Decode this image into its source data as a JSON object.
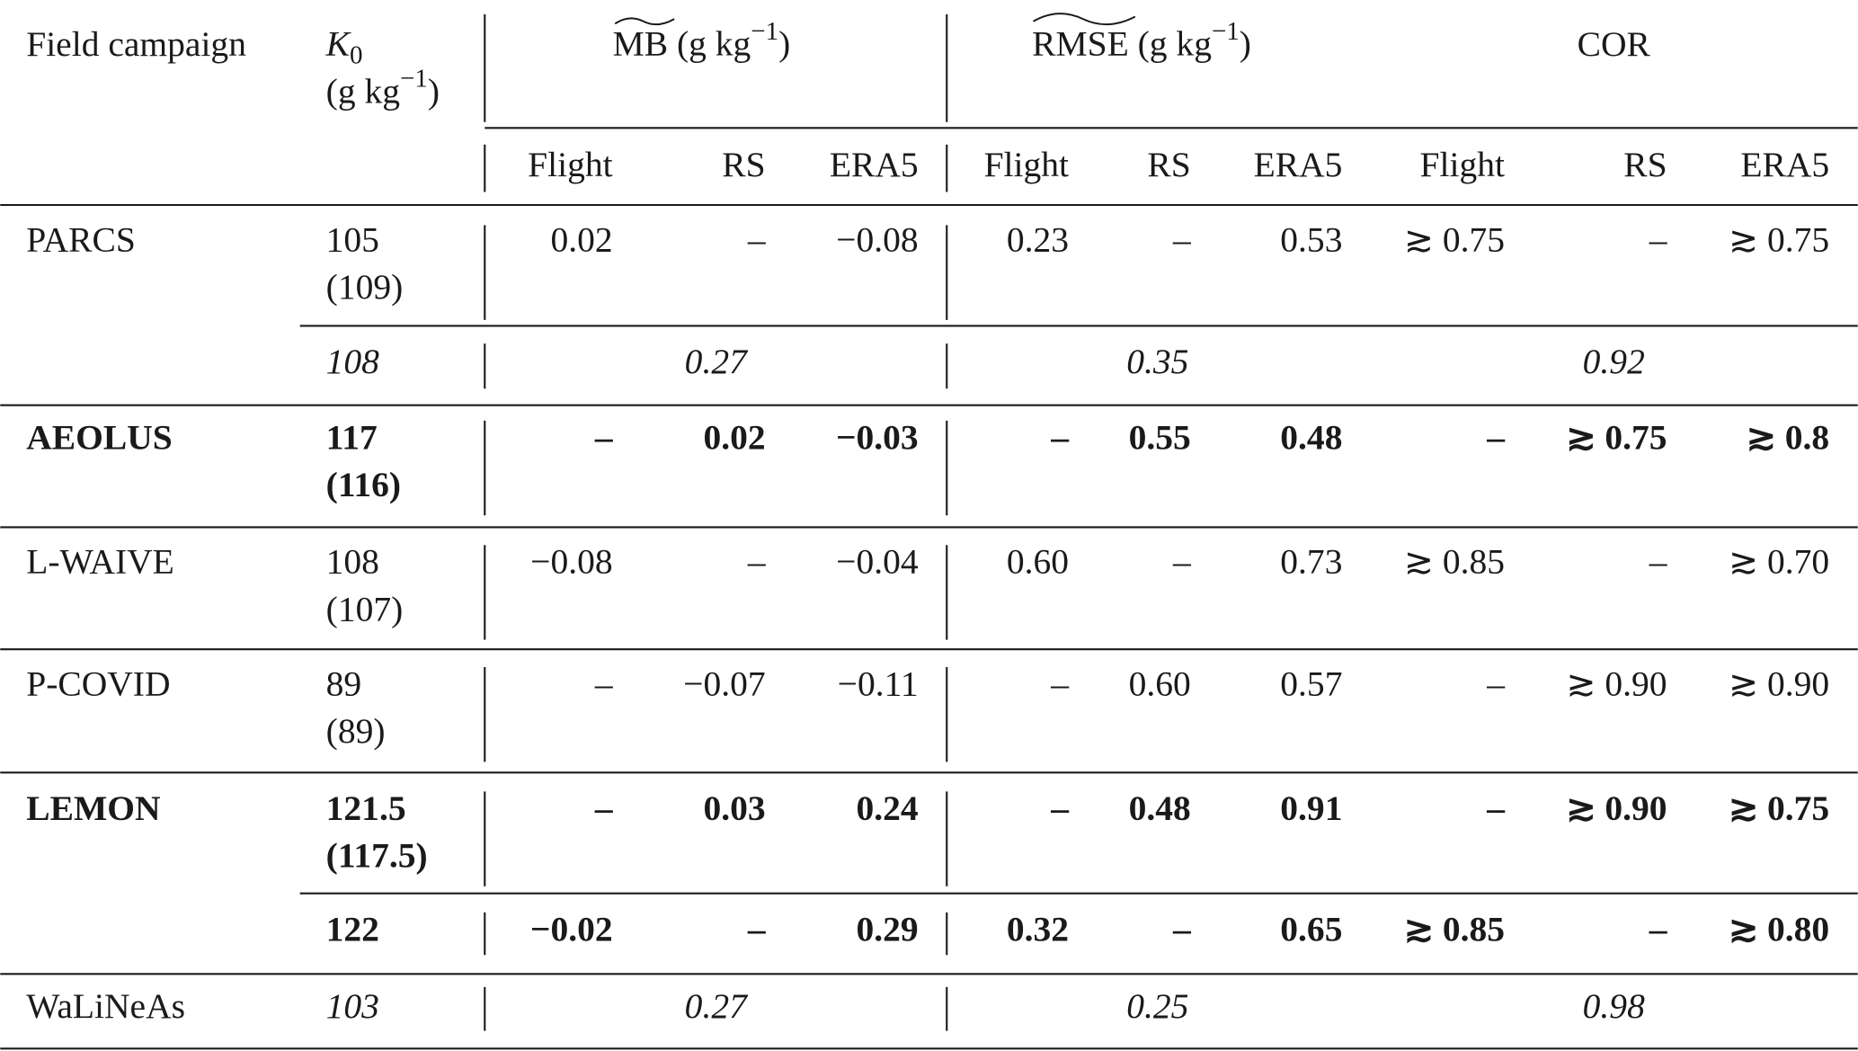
{
  "header": {
    "field_campaign": "Field campaign",
    "k0": {
      "symbol": "K",
      "subscript": "0",
      "unit": "(g kg",
      "unit_exp": "−1",
      "unit_close": ")"
    },
    "mb": {
      "label": "MB",
      "unit": " (g kg",
      "unit_exp": "−1",
      "unit_close": ")",
      "subcolumns": [
        "Flight",
        "RS",
        "ERA5"
      ]
    },
    "rmse": {
      "label": "RMSE",
      "unit": " (g kg",
      "unit_exp": "−1",
      "unit_close": ")",
      "subcolumns": [
        "Flight",
        "RS",
        "ERA5"
      ]
    },
    "cor": {
      "label": "COR",
      "subcolumns": [
        "Flight",
        "RS",
        "ERA5"
      ]
    }
  },
  "rows": [
    {
      "campaign": "PARCS",
      "k0": "105",
      "k0_alt": "(109)",
      "mb": [
        "0.02",
        "–",
        "−0.08"
      ],
      "rmse": [
        "0.23",
        "–",
        "0.53"
      ],
      "cor": [
        "≳ 0.75",
        "–",
        "≳ 0.75"
      ],
      "bold": false,
      "italic": false
    },
    {
      "k0": "108",
      "mb": "0.27",
      "rmse": "0.35",
      "cor": "0.92",
      "bold": false,
      "italic": true
    },
    {
      "campaign": "AEOLUS",
      "k0": "117",
      "k0_alt": "(116)",
      "mb": [
        "–",
        "0.02",
        "−0.03"
      ],
      "rmse": [
        "–",
        "0.55",
        "0.48"
      ],
      "cor": [
        "–",
        "≳ 0.75",
        "≳ 0.8"
      ],
      "bold": true,
      "italic": false
    },
    {
      "campaign": "L-WAIVE",
      "k0": "108",
      "k0_alt": "(107)",
      "mb": [
        "−0.08",
        "–",
        "−0.04"
      ],
      "rmse": [
        "0.60",
        "–",
        "0.73"
      ],
      "cor": [
        "≳ 0.85",
        "–",
        "≳ 0.70"
      ],
      "bold": false,
      "italic": false
    },
    {
      "campaign": "P-COVID",
      "k0": "89",
      "k0_alt": "(89)",
      "mb": [
        "–",
        "−0.07",
        "−0.11"
      ],
      "rmse": [
        "–",
        "0.60",
        "0.57"
      ],
      "cor": [
        "–",
        "≳ 0.90",
        "≳ 0.90"
      ],
      "bold": false,
      "italic": false
    },
    {
      "campaign": "LEMON",
      "k0": "121.5",
      "k0_alt": "(117.5)",
      "mb": [
        "–",
        "0.03",
        "0.24"
      ],
      "rmse": [
        "–",
        "0.48",
        "0.91"
      ],
      "cor": [
        "–",
        "≳ 0.90",
        "≳ 0.75"
      ],
      "bold": true,
      "italic": false
    },
    {
      "k0": "122",
      "mb": [
        "−0.02",
        "–",
        "0.29"
      ],
      "rmse": [
        "0.32",
        "–",
        "0.65"
      ],
      "cor": [
        "≳ 0.85",
        "–",
        "≳ 0.80"
      ],
      "bold": true,
      "italic": false
    },
    {
      "campaign": "WaLiNeAs",
      "k0": "103",
      "mb": "0.27",
      "rmse": "0.25",
      "cor": "0.98",
      "bold": false,
      "italic": true
    }
  ]
}
